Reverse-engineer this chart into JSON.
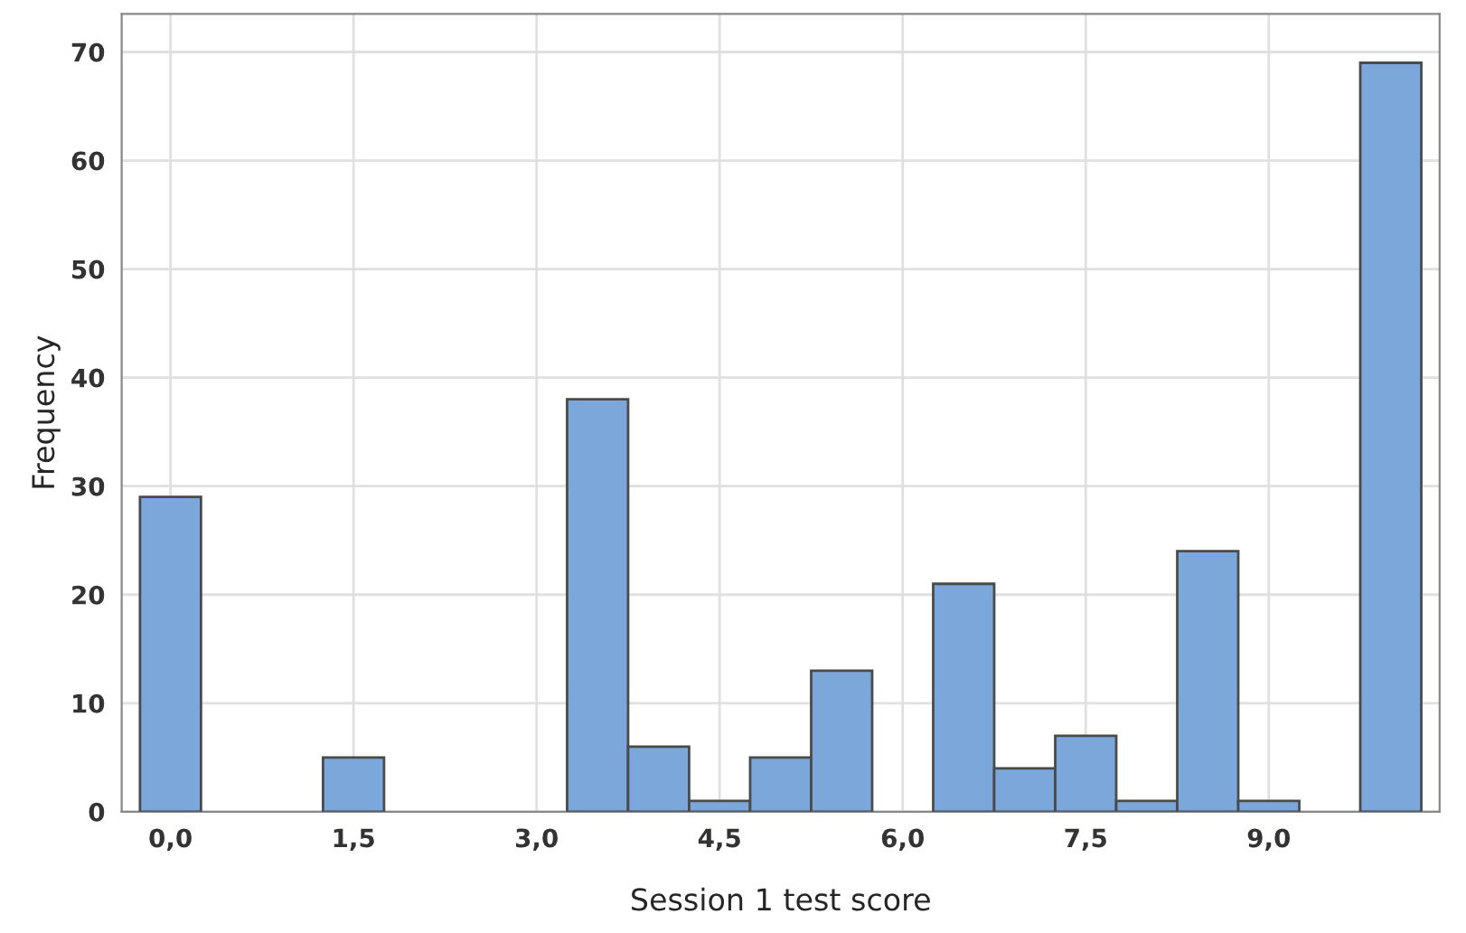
{
  "chart_data": {
    "type": "histogram",
    "xlabel": "Session 1 test score",
    "ylabel": "Frequency",
    "bins": [
      -0.25,
      0.25,
      0.75,
      1.25,
      1.75,
      2.25,
      2.75,
      3.25,
      3.75,
      4.25,
      4.75,
      5.25,
      5.75,
      6.25,
      6.75,
      7.25,
      7.75,
      8.25,
      8.75,
      9.25,
      9.75,
      10.25
    ],
    "values": [
      29,
      0,
      0,
      5,
      0,
      0,
      0,
      38,
      6,
      1,
      5,
      13,
      0,
      21,
      4,
      7,
      1,
      24,
      1,
      0,
      69
    ],
    "color": "#7ba7db",
    "xlim": [
      -0.4,
      10.4
    ],
    "ylim": [
      0,
      73.5
    ],
    "xticks": [
      {
        "value": 0,
        "label": "0,0"
      },
      {
        "value": 1.5,
        "label": "1,5"
      },
      {
        "value": 3,
        "label": "3,0"
      },
      {
        "value": 4.5,
        "label": "4,5"
      },
      {
        "value": 6,
        "label": "6,0"
      },
      {
        "value": 7.5,
        "label": "7,5"
      },
      {
        "value": 9,
        "label": "9,0"
      }
    ],
    "yticks": [
      0,
      10,
      20,
      30,
      40,
      50,
      60,
      70
    ],
    "grid": true
  }
}
